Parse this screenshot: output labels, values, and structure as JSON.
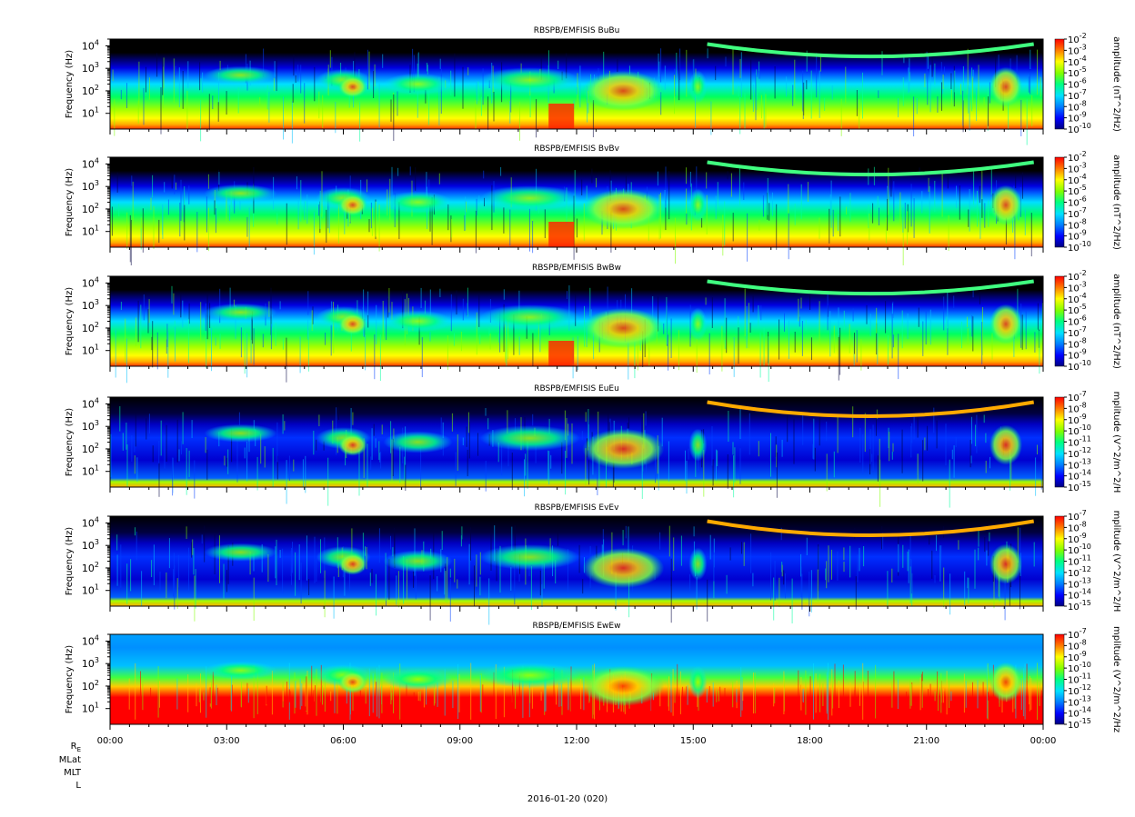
{
  "footer": {
    "date_label": "2016-01-20 (020)"
  },
  "ephemeris_labels": [
    "R",
    "MLat",
    "MLT",
    "L"
  ],
  "ephemeris_subscript": "E",
  "colors": {
    "spectrogram_scale": [
      "#000080",
      "#0000ff",
      "#0080ff",
      "#00e0ff",
      "#00ff80",
      "#80ff00",
      "#ffff00",
      "#ff8000",
      "#ff0000"
    ],
    "background_dark": "#000000",
    "frame": "#000000"
  },
  "chart_data": [
    {
      "type": "heatmap",
      "title": "RBSPB/EMFISIS  BuBu",
      "ylabel": "Frequency (Hz)",
      "yscale": "log",
      "ylim": [
        2,
        20000
      ],
      "yticks": [
        10,
        100,
        1000,
        10000
      ],
      "xticks": [
        "00:00",
        "03:00",
        "06:00",
        "09:00",
        "12:00",
        "15:00",
        "18:00",
        "21:00",
        "00:00"
      ],
      "colorbar_label": "amplitude (nT^2/Hz)",
      "colorbar_ticks": [
        -2,
        -3,
        -4,
        -5,
        -6,
        -7,
        -8,
        -9,
        -10
      ],
      "kind": "B",
      "intensity": 1.0
    },
    {
      "type": "heatmap",
      "title": "RBSPB/EMFISIS  BvBv",
      "ylabel": "Frequency (Hz)",
      "yscale": "log",
      "ylim": [
        2,
        20000
      ],
      "yticks": [
        10,
        100,
        1000,
        10000
      ],
      "xticks": [
        "00:00",
        "03:00",
        "06:00",
        "09:00",
        "12:00",
        "15:00",
        "18:00",
        "21:00",
        "00:00"
      ],
      "colorbar_label": "amplitude (nT^2/Hz)",
      "colorbar_ticks": [
        -2,
        -3,
        -4,
        -5,
        -6,
        -7,
        -8,
        -9,
        -10
      ],
      "kind": "B",
      "intensity": 1.0
    },
    {
      "type": "heatmap",
      "title": "RBSPB/EMFISIS  BwBw",
      "ylabel": "Frequency (Hz)",
      "yscale": "log",
      "ylim": [
        2,
        20000
      ],
      "yticks": [
        10,
        100,
        1000,
        10000
      ],
      "xticks": [
        "00:00",
        "03:00",
        "06:00",
        "09:00",
        "12:00",
        "15:00",
        "18:00",
        "21:00",
        "00:00"
      ],
      "colorbar_label": "amplitude (nT^2/Hz)",
      "colorbar_ticks": [
        -2,
        -3,
        -4,
        -5,
        -6,
        -7,
        -8,
        -9,
        -10
      ],
      "kind": "B",
      "intensity": 0.9
    },
    {
      "type": "heatmap",
      "title": "RBSPB/EMFISIS  EuEu",
      "ylabel": "Frequency (Hz)",
      "yscale": "log",
      "ylim": [
        2,
        20000
      ],
      "yticks": [
        10,
        100,
        1000,
        10000
      ],
      "xticks": [
        "00:00",
        "03:00",
        "06:00",
        "09:00",
        "12:00",
        "15:00",
        "18:00",
        "21:00",
        "00:00"
      ],
      "colorbar_label": "mplitude (V^2/m^2/H",
      "colorbar_ticks": [
        -7,
        -8,
        -9,
        -10,
        -11,
        -12,
        -13,
        -14,
        -15
      ],
      "kind": "E",
      "intensity": 1.0
    },
    {
      "type": "heatmap",
      "title": "RBSPB/EMFISIS  EvEv",
      "ylabel": "Frequency (Hz)",
      "yscale": "log",
      "ylim": [
        2,
        20000
      ],
      "yticks": [
        10,
        100,
        1000,
        10000
      ],
      "xticks": [
        "00:00",
        "03:00",
        "06:00",
        "09:00",
        "12:00",
        "15:00",
        "18:00",
        "21:00",
        "00:00"
      ],
      "colorbar_label": "mplitude (V^2/m^2/H",
      "colorbar_ticks": [
        -7,
        -8,
        -9,
        -10,
        -11,
        -12,
        -13,
        -14,
        -15
      ],
      "kind": "E",
      "intensity": 1.0
    },
    {
      "type": "heatmap",
      "title": "RBSPB/EMFISIS  EwEw",
      "ylabel": "Frequency (Hz)",
      "yscale": "log",
      "ylim": [
        2,
        20000
      ],
      "yticks": [
        10,
        100,
        1000,
        10000
      ],
      "xticks": [
        "00:00",
        "03:00",
        "06:00",
        "09:00",
        "12:00",
        "15:00",
        "18:00",
        "21:00",
        "00:00"
      ],
      "colorbar_label": "mplitude (V^2/m^2/Hz",
      "colorbar_ticks": [
        -7,
        -8,
        -9,
        -10,
        -11,
        -12,
        -13,
        -14,
        -15
      ],
      "kind": "Ew",
      "intensity": 1.0
    }
  ]
}
